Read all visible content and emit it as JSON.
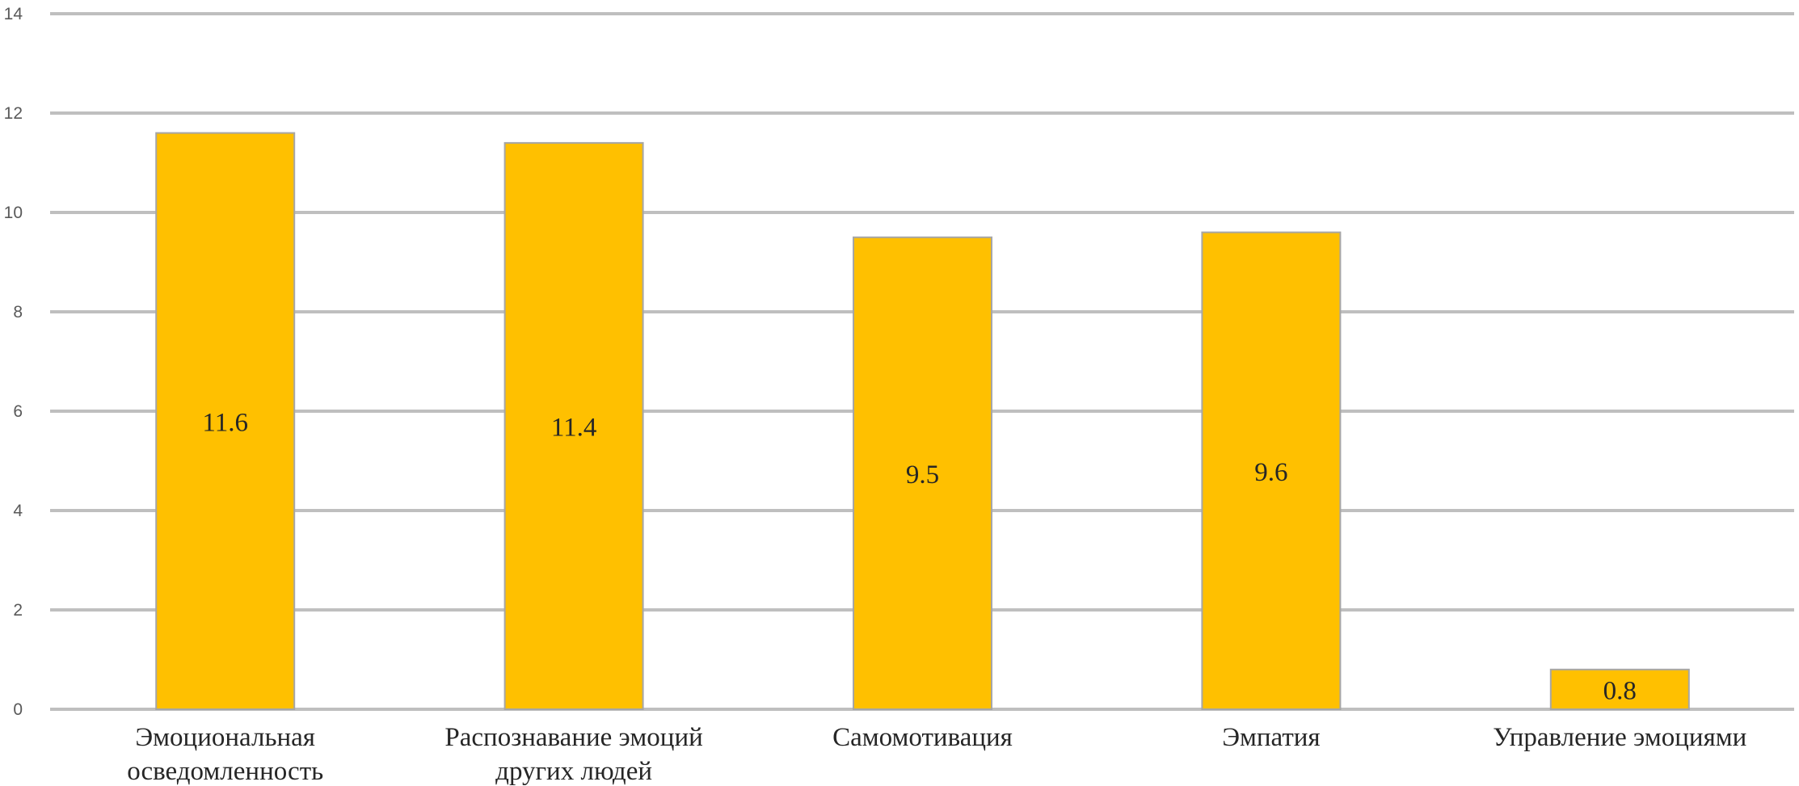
{
  "chart_data": {
    "type": "bar",
    "categories": [
      [
        "Эмоциональная",
        "осведомленность"
      ],
      [
        "Распознавание эмоций",
        "других людей"
      ],
      [
        "Самомотивация"
      ],
      [
        "Эмпатия"
      ],
      [
        "Управление эмоциями"
      ]
    ],
    "values": [
      11.6,
      11.4,
      9.5,
      9.6,
      0.8
    ],
    "data_labels": [
      "11.6",
      "11.4",
      "9.5",
      "9.6",
      "0.8"
    ],
    "title": "",
    "xlabel": "",
    "ylabel": "",
    "ylim": [
      0,
      14
    ],
    "yticks": [
      0,
      2,
      4,
      6,
      8,
      10,
      12,
      14
    ],
    "grid": true,
    "legend": "none",
    "colors": {
      "bar": "#FFC000",
      "bar_edge": "#A6A6A6",
      "grid": "#BFBFBF"
    }
  }
}
